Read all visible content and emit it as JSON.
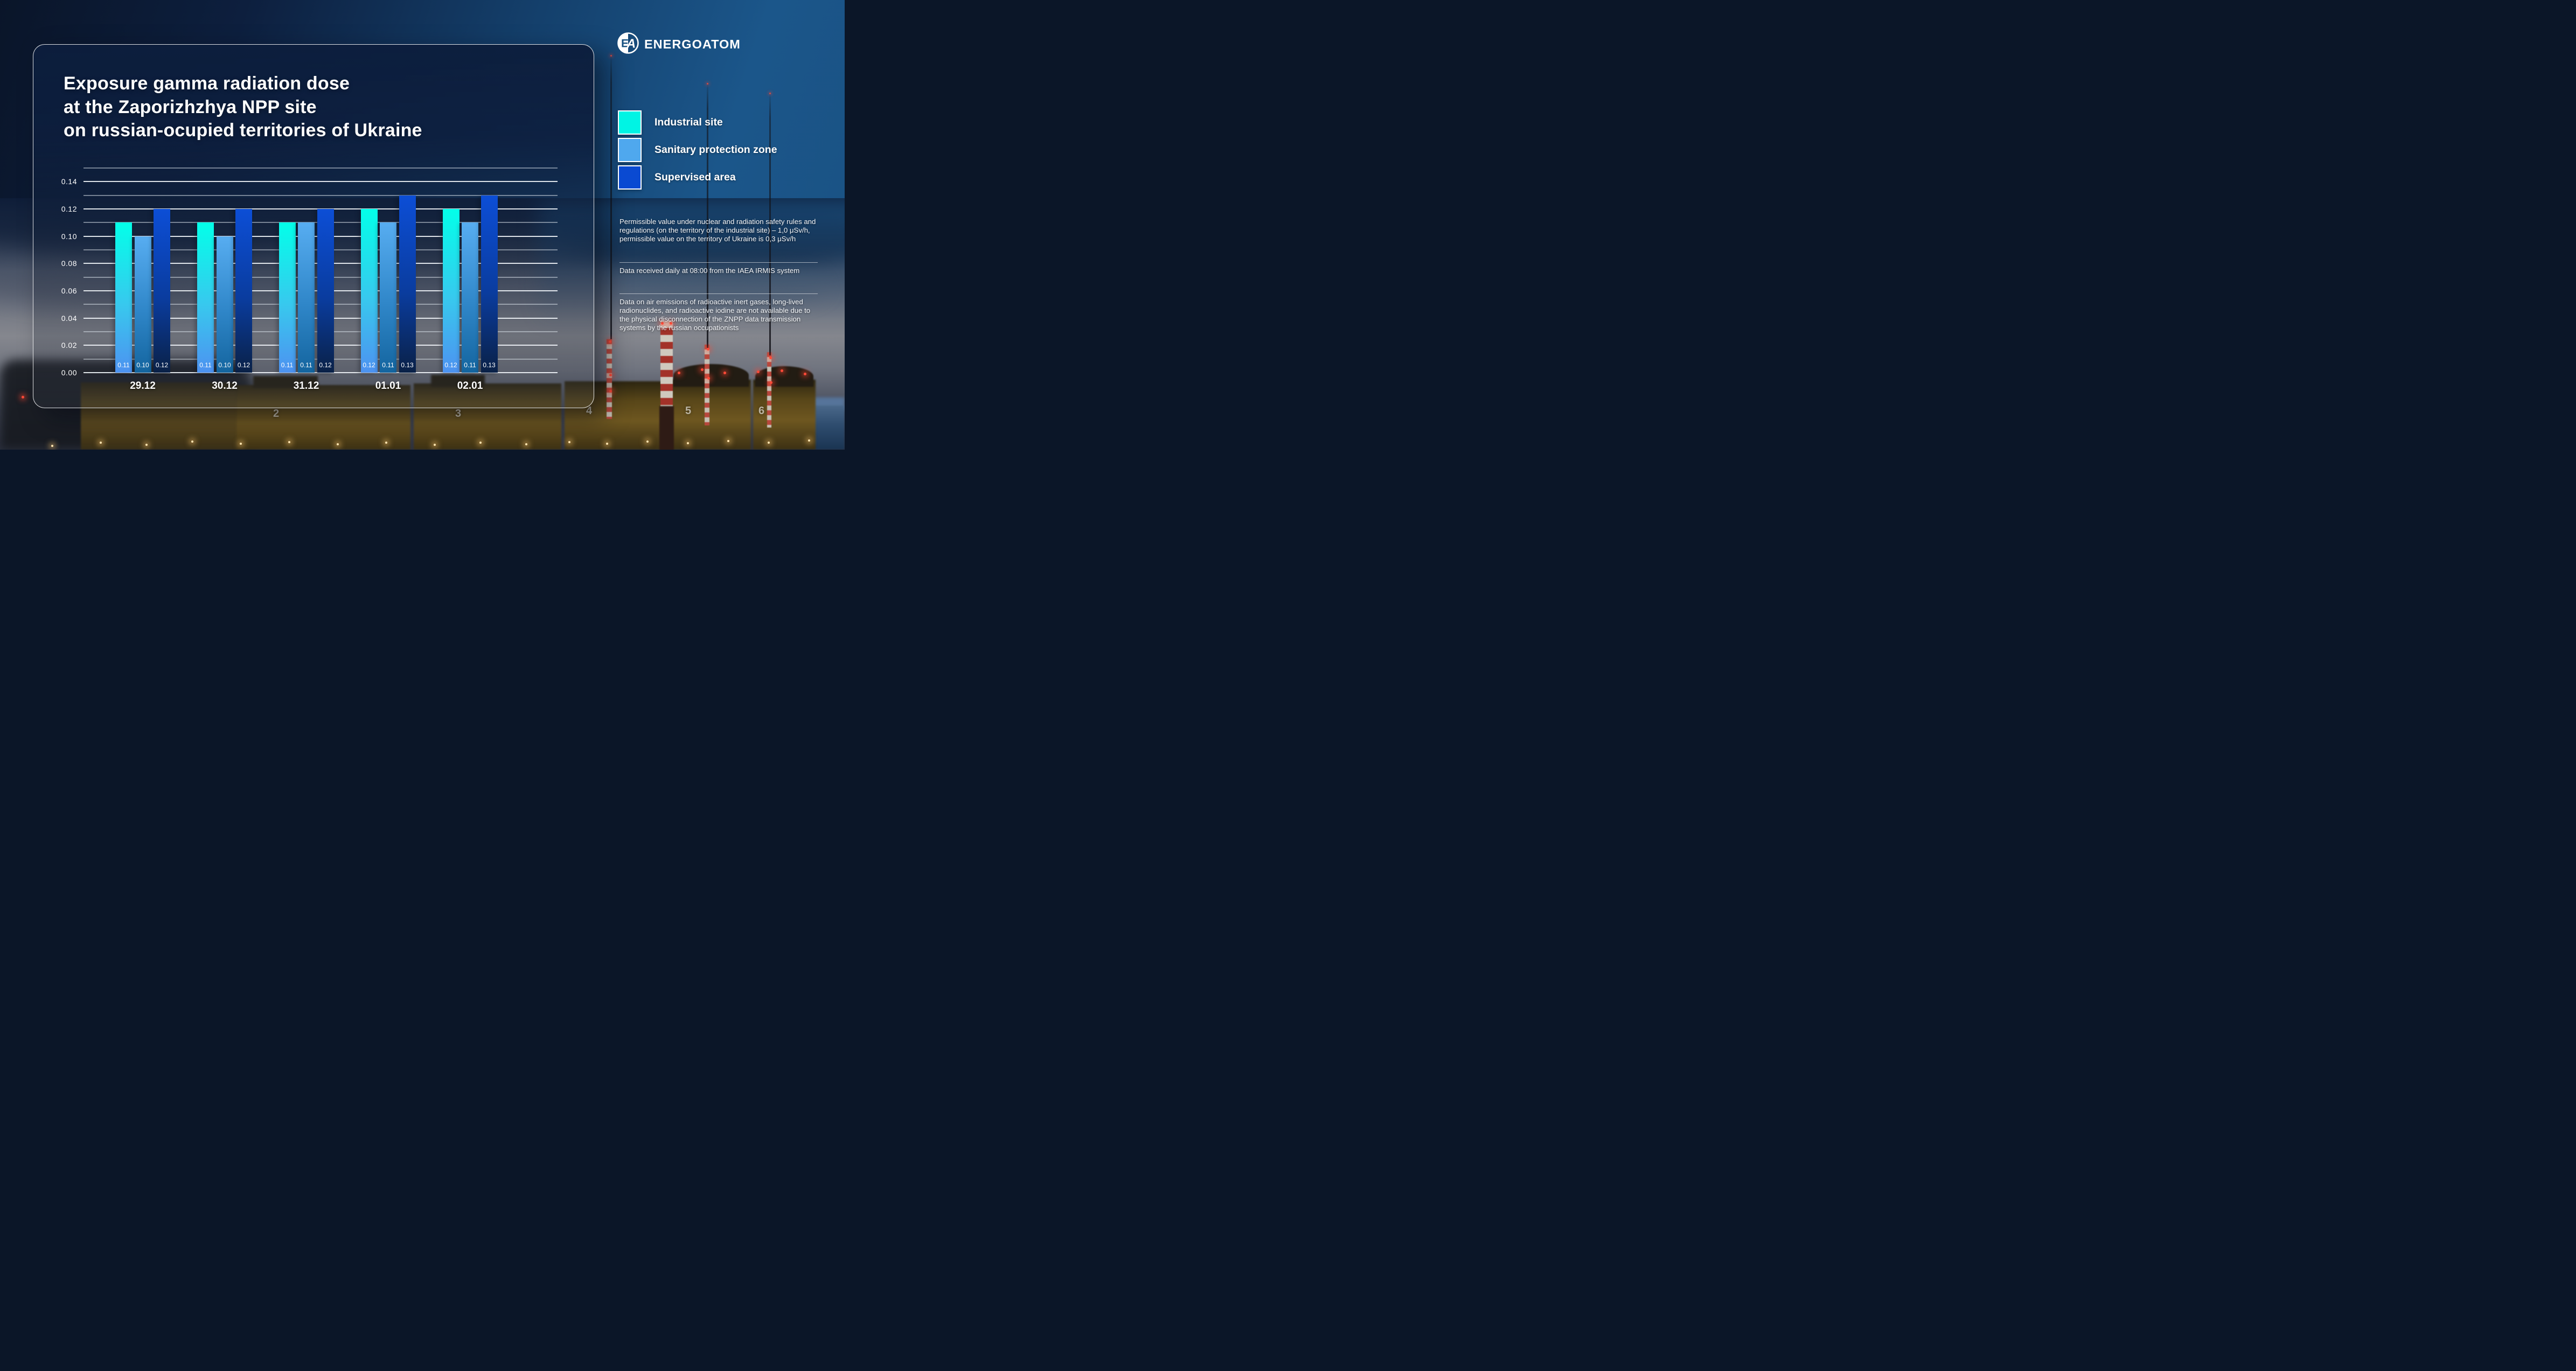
{
  "brand": {
    "name": "ENERGOATOM",
    "monogram": "EA"
  },
  "title": {
    "lines": [
      "Exposure gamma radiation dose",
      "at the Zaporizhzhya NPP site",
      "on russian-ocupied territories of Ukraine"
    ]
  },
  "chart_data": {
    "type": "bar",
    "title": "Exposure gamma radiation dose at the Zaporizhzhya NPP site on russian-ocupied territories of Ukraine",
    "categories": [
      "29.12",
      "30.12",
      "31.12",
      "01.01",
      "02.01"
    ],
    "series": [
      {
        "name": "Industrial site",
        "values": [
          0.11,
          0.11,
          0.11,
          0.12,
          0.12
        ],
        "value_labels": [
          "0.11",
          "0.11",
          "0.11",
          "0.12",
          "0.12"
        ],
        "color_top": "#03FFE9",
        "color_mid": "#38C8EE",
        "color_bottom": "#4D92F0"
      },
      {
        "name": "Sanitary protection zone",
        "values": [
          0.1,
          0.1,
          0.11,
          0.11,
          0.11
        ],
        "value_labels": [
          "0.10",
          "0.10",
          "0.11",
          "0.11",
          "0.11"
        ],
        "color_top": "#57ADF1",
        "color_mid": "#2F86C8",
        "color_bottom": "#14659F"
      },
      {
        "name": "Supervised area",
        "values": [
          0.12,
          0.12,
          0.12,
          0.13,
          0.13
        ],
        "value_labels": [
          "0.12",
          "0.12",
          "0.12",
          "0.13",
          "0.13"
        ],
        "color_top": "#0C4ED6",
        "color_mid": "#0A3C9E",
        "color_bottom": "#0A2147"
      }
    ],
    "ylim": [
      0,
      0.15
    ],
    "grid_step": 0.01,
    "tick_step": 0.02,
    "yticks": [
      "0.00",
      "0.02",
      "0.04",
      "0.06",
      "0.08",
      "0.10",
      "0.12",
      "0.14"
    ],
    "grid": true,
    "legend_position": "right"
  },
  "legend": {
    "items": [
      {
        "label": "Industrial site",
        "color": "#00F4E4"
      },
      {
        "label": "Sanitary protection zone",
        "color": "#4FA8EE"
      },
      {
        "label": "Supervised area",
        "color": "#0A4AD2"
      }
    ]
  },
  "notes": [
    {
      "text": "Permissible value under nuclear and radiation safety rules and regulations (on the territory of the industrial site) – 1,0 μSv/h, permissible value on the territory of Ukraine is 0,3 μSv/h"
    },
    {
      "text": "Data received daily at 08:00 from the IAEA IRMIS system"
    },
    {
      "text": "Data on air emissions of radioactive inert gases, long-lived radionuclides, and radioactive iodine are not available due to the physical disconnection of the ZNPP data transmission systems by the russian occupationists"
    }
  ],
  "photo": {
    "unit_numbers": [
      "2",
      "3",
      "4",
      "5",
      "6"
    ]
  }
}
